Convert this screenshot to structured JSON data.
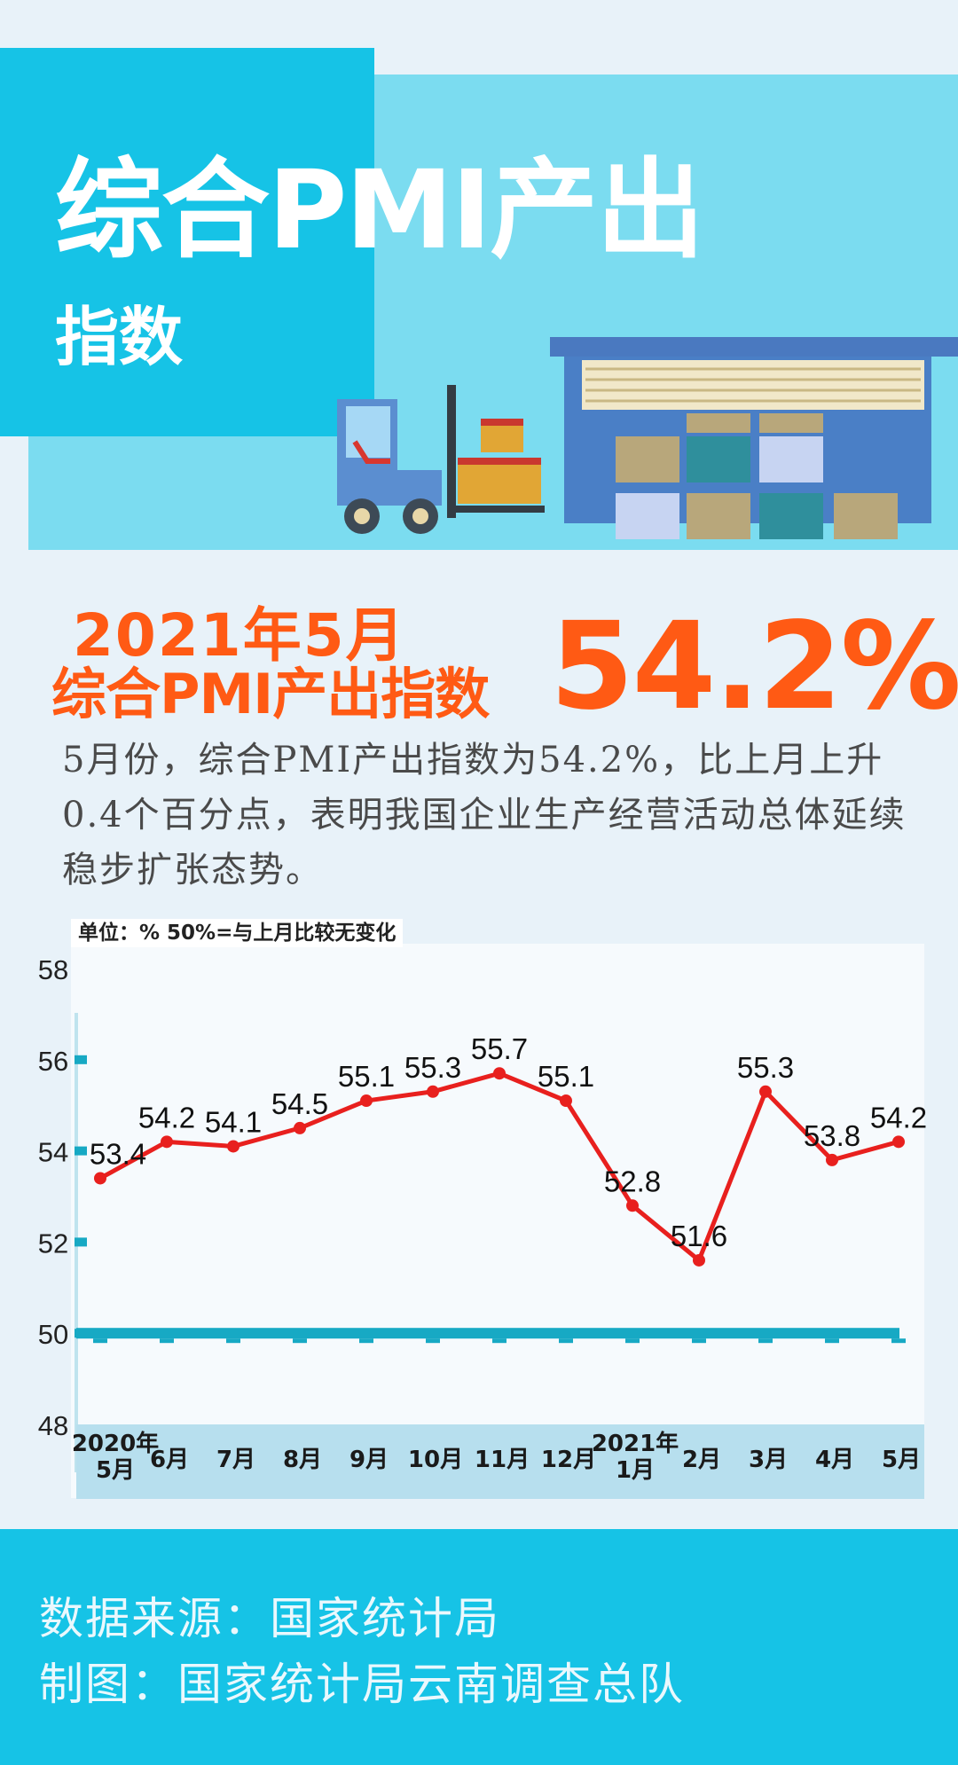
{
  "header": {
    "title": "综合PMI产出",
    "subtitle": "指数"
  },
  "headline": {
    "line1": "2021年5月",
    "line2": "综合PMI产出指数",
    "value": "54.2%"
  },
  "summary": "5月份，综合PMI产出指数为54.2%，比上月上升0.4个百分点，表明我国企业生产经营活动总体延续稳步扩张态势。",
  "colors": {
    "accent_orange": "#ff5a14",
    "line_red": "#e8201e",
    "baseline_teal": "#17a9c4",
    "banner_cyan": "#16c3e6",
    "banner_light": "#7bdcf0"
  },
  "chart_data": {
    "type": "line",
    "unit_note": "单位：%  50%=与上月比较无变化",
    "categories": [
      "2020年\n5月",
      "6月",
      "7月",
      "8月",
      "9月",
      "10月",
      "11月",
      "12月",
      "2021年\n1月",
      "2月",
      "3月",
      "4月",
      "5月"
    ],
    "series": [
      {
        "values": [
          53.4,
          54.2,
          54.1,
          54.5,
          55.1,
          55.3,
          55.7,
          55.1,
          52.8,
          51.6,
          55.3,
          53.8,
          54.2
        ]
      }
    ],
    "value_labels": [
      "53.4",
      "54.2",
      "54.1",
      "54.5",
      "55.1",
      "55.3",
      "55.7",
      "55.1",
      "52.8",
      "51.6",
      "55.3",
      "53.8",
      "54.2"
    ],
    "reference_line": 50,
    "y_ticks": [
      "48",
      "50",
      "52",
      "54",
      "56",
      "58"
    ],
    "ylim": [
      48,
      58
    ],
    "grid": false
  },
  "footer": {
    "source": "数据来源：国家统计局",
    "credit": "制图：国家统计局云南调查总队"
  }
}
